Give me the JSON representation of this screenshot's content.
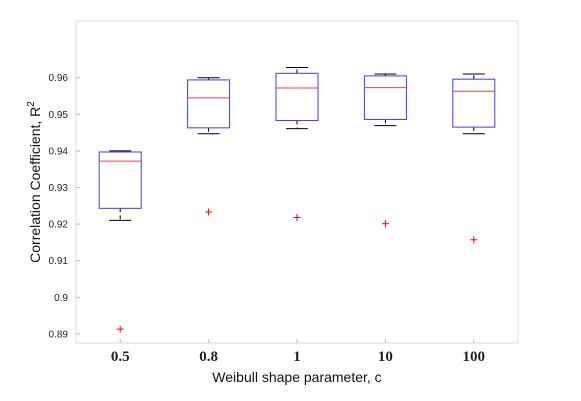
{
  "chart_data": {
    "type": "box",
    "xlabel": "Weibull shape parameter, c",
    "ylabel": "Correlation Coefficient, R",
    "ylabel_superscript": "2",
    "ylim": [
      0.8875,
      0.9755
    ],
    "yticks": [
      0.89,
      0.9,
      0.91,
      0.92,
      0.93,
      0.94,
      0.95,
      0.96
    ],
    "ytick_labels": [
      "0.89",
      "0.9",
      "0.91",
      "0.92",
      "0.93",
      "0.94",
      "0.95",
      "0.96"
    ],
    "categories": [
      "0.5",
      "0.8",
      "1",
      "10",
      "100"
    ],
    "boxes": [
      {
        "category": "0.5",
        "whisker_low": 0.921,
        "q1": 0.9243,
        "median": 0.9372,
        "q3": 0.9397,
        "whisker_high": 0.94,
        "outliers": [
          0.8913
        ]
      },
      {
        "category": "0.8",
        "whisker_low": 0.9447,
        "q1": 0.9463,
        "median": 0.9545,
        "q3": 0.9594,
        "whisker_high": 0.96,
        "outliers": [
          0.9233
        ]
      },
      {
        "category": "1",
        "whisker_low": 0.9461,
        "q1": 0.9483,
        "median": 0.9572,
        "q3": 0.9612,
        "whisker_high": 0.9628,
        "outliers": [
          0.9218
        ]
      },
      {
        "category": "10",
        "whisker_low": 0.9469,
        "q1": 0.9486,
        "median": 0.9573,
        "q3": 0.9605,
        "whisker_high": 0.961,
        "outliers": [
          0.9201
        ]
      },
      {
        "category": "100",
        "whisker_low": 0.9447,
        "q1": 0.9465,
        "median": 0.9563,
        "q3": 0.9596,
        "whisker_high": 0.961,
        "outliers": [
          0.9157
        ]
      }
    ],
    "grid": false,
    "colors": {
      "box": "#3b3bff",
      "median": "#ff3b3b",
      "whisker": "#000000",
      "outlier": "#ff0000",
      "frame": "#d9d9d9"
    }
  }
}
